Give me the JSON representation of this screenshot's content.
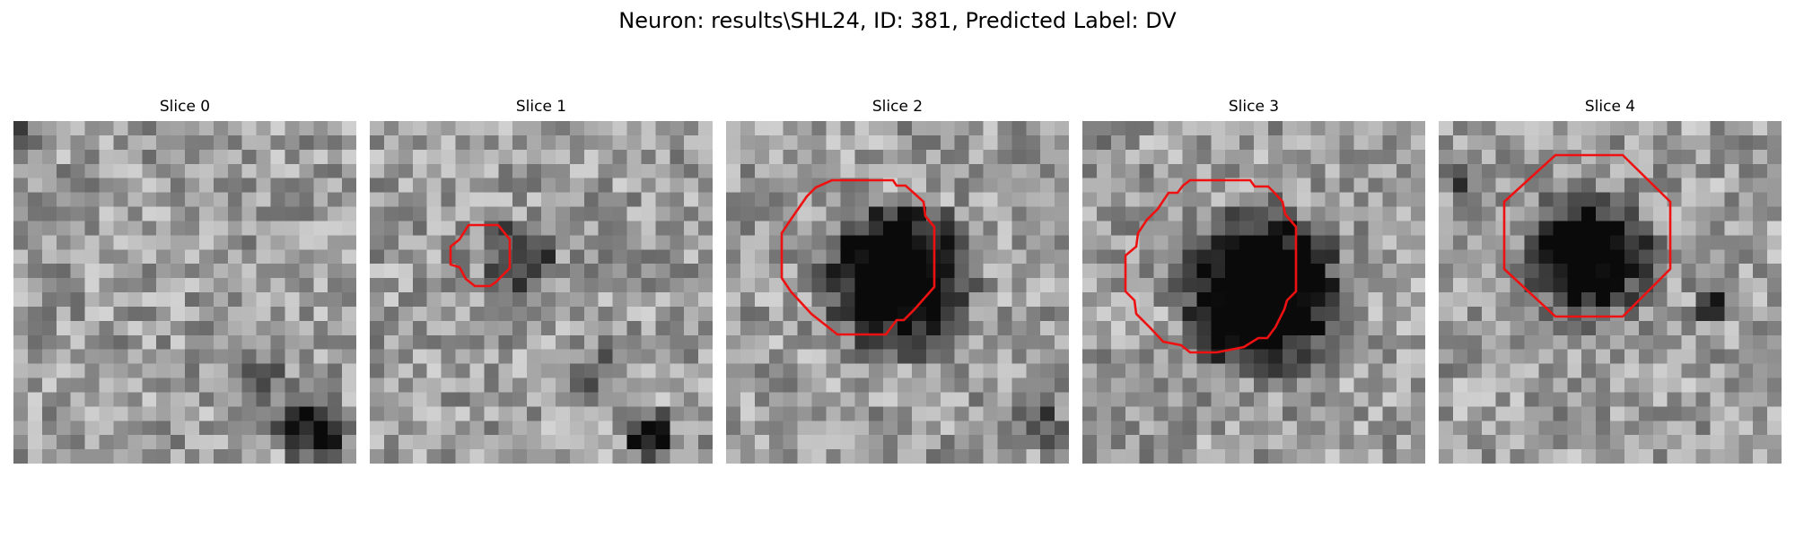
{
  "figure": {
    "title": "Neuron: results\\SHL24, ID: 381, Predicted Label: DV"
  },
  "colors": {
    "contour": "#ee1111",
    "background": "#ffffff"
  },
  "slices": [
    {
      "title": "Slice 0",
      "has_contour": false
    },
    {
      "title": "Slice 1",
      "has_contour": true
    },
    {
      "title": "Slice 2",
      "has_contour": true
    },
    {
      "title": "Slice 3",
      "has_contour": true
    },
    {
      "title": "Slice 4",
      "has_contour": true
    }
  ]
}
